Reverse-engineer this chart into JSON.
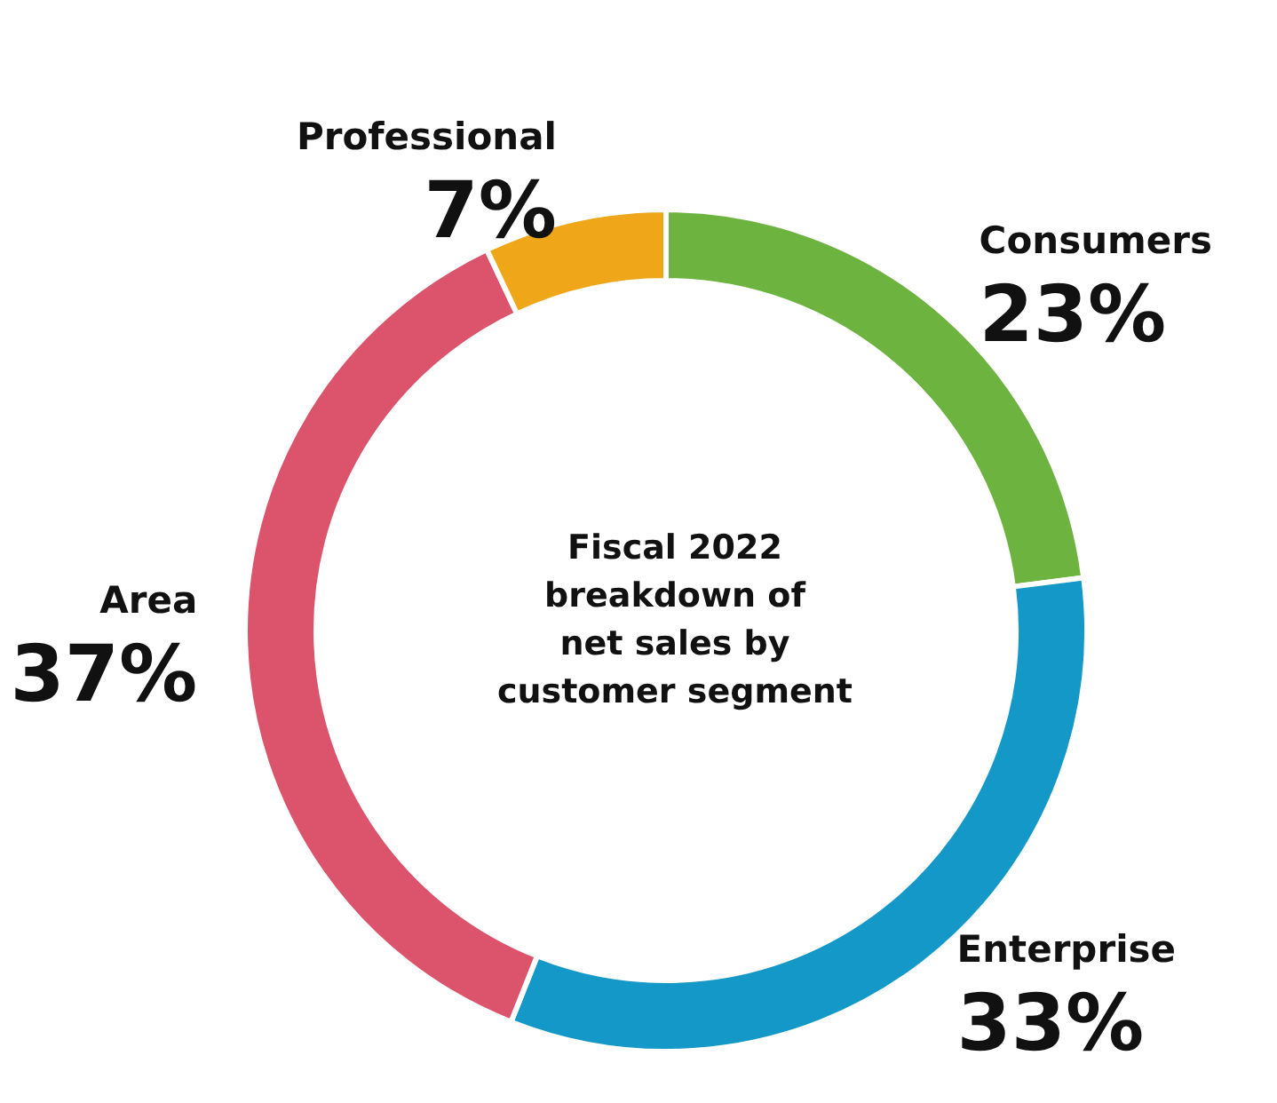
{
  "chart_data": {
    "type": "donut",
    "title": "Fiscal 2022\nbreakdown of\nnet sales by\ncustomer segment",
    "categories": [
      "Consumers",
      "Enterprise",
      "Area",
      "Professional"
    ],
    "values": [
      23,
      33,
      37,
      7
    ],
    "value_labels": [
      "23%",
      "33%",
      "37%",
      "7%"
    ],
    "colors": [
      "#6db33f",
      "#1398c8",
      "#dc546b",
      "#efa619"
    ],
    "legend": false
  }
}
